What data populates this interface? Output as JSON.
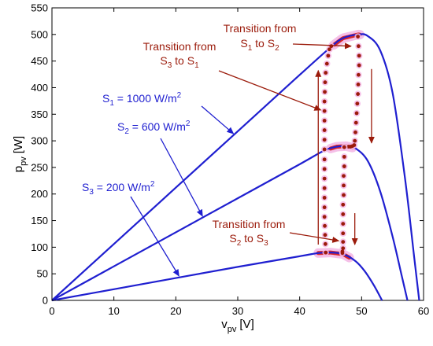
{
  "chart_data": {
    "type": "line",
    "title": "",
    "xlabel": {
      "main": "v",
      "sub": "pv",
      "unit": "[V]"
    },
    "ylabel": {
      "main": "p",
      "sub": "pv",
      "unit": "[W]"
    },
    "xlim": [
      0,
      60
    ],
    "ylim": [
      0,
      550
    ],
    "xticks": [
      "0",
      "10",
      "20",
      "30",
      "40",
      "50",
      "60"
    ],
    "yticks": [
      "0",
      "50",
      "100",
      "150",
      "200",
      "250",
      "300",
      "350",
      "400",
      "450",
      "500",
      "550"
    ],
    "grid": false,
    "colors": {
      "curve": "#1f1fd0",
      "transition": "#9b1b0b",
      "halo": "#f4b9e6",
      "axis": "#000000"
    },
    "series": [
      {
        "name": "S1 = 1000 W/m2",
        "x": [
          0,
          10,
          20,
          30,
          40,
          45,
          47,
          49.5,
          51,
          53,
          55,
          57,
          58.5,
          59.3
        ],
        "y": [
          0,
          106,
          212,
          318,
          424,
          476,
          493,
          500,
          497,
          470,
          390,
          230,
          80,
          0
        ]
      },
      {
        "name": "S2 = 600 W/m2",
        "x": [
          0,
          10,
          20,
          30,
          40,
          44,
          46,
          47.5,
          49,
          51,
          53,
          55,
          56.5,
          57.4
        ],
        "y": [
          0,
          64,
          128,
          192,
          256,
          282,
          289,
          290,
          286,
          262,
          205,
          120,
          45,
          0
        ]
      },
      {
        "name": "S3 = 200 W/m2",
        "x": [
          0,
          10,
          20,
          30,
          40,
          43,
          45,
          47,
          49,
          50.5,
          52,
          53.3
        ],
        "y": [
          0,
          21,
          42,
          63,
          83,
          89,
          90,
          87,
          74,
          55,
          28,
          0
        ]
      }
    ],
    "transition_paths": [
      {
        "name": "S3 to S1",
        "x": [
          44.2,
          44.15,
          44.1,
          44.05,
          44,
          44,
          44,
          44,
          44,
          44,
          44,
          44,
          44,
          44,
          44,
          44,
          44,
          44.05,
          44.1,
          44.2,
          44.4,
          44.6,
          44.8,
          45.1
        ],
        "y": [
          90,
          106,
          123,
          140,
          157,
          175,
          193,
          211,
          229,
          247,
          265,
          284,
          302,
          320,
          338,
          356,
          374,
          392,
          410,
          428,
          445,
          460,
          472,
          478
        ]
      },
      {
        "name": "S1 to S2",
        "x": [
          49.4,
          49.5,
          49.6,
          49.6,
          49.5,
          49.45,
          49.4,
          49.3,
          49.2,
          49.1,
          49,
          48.9,
          48.8,
          48.5,
          48.2,
          47.9
        ],
        "y": [
          496,
          478,
          460,
          442,
          424,
          406,
          388,
          370,
          352,
          334,
          316,
          300,
          292,
          290,
          289,
          289
        ]
      },
      {
        "name": "S2 to S3",
        "x": [
          47.2,
          47.2,
          47.2,
          47.1,
          47.1,
          47.1,
          47,
          47,
          47,
          47,
          47,
          47,
          46.9,
          46.9
        ],
        "y": [
          288,
          270,
          252,
          234,
          216,
          198,
          180,
          162,
          144,
          126,
          110,
          98,
          92,
          89
        ]
      }
    ],
    "highlights": [
      {
        "curve": "S1",
        "x_from": 45.5,
        "x_to": 49.7
      },
      {
        "curve": "S2",
        "x_from": 45,
        "x_to": 48.5
      },
      {
        "curve": "S3",
        "x_from": 43,
        "x_to": 48
      }
    ],
    "annotations": {
      "s1": {
        "main": "S",
        "sub": "1",
        "rest": " = 1000 W/m",
        "sup": "2"
      },
      "s2": {
        "main": "S",
        "sub": "2",
        "rest": " = 600 W/m",
        "sup": "2"
      },
      "s3": {
        "main": "S",
        "sub": "3",
        "rest": " = 200 W/m",
        "sup": "2"
      },
      "t31": {
        "line1": "Transition from",
        "line2": {
          "a": "S",
          "asub": "3",
          "mid": " to S",
          "bsub": "1"
        }
      },
      "t12": {
        "line1": "Transition from",
        "line2": {
          "a": "S",
          "asub": "1",
          "mid": " to S",
          "bsub": "2"
        }
      },
      "t23": {
        "line1": "Transition from",
        "line2": {
          "a": "S",
          "asub": "2",
          "mid": " to S",
          "bsub": "3"
        }
      }
    },
    "direction_arrows": [
      {
        "x_at": 43.0,
        "y_from": 105,
        "y_to": 432
      },
      {
        "x_at": 51.6,
        "y_from": 435,
        "y_to": 296
      },
      {
        "x_at": 48.9,
        "y_from": 164,
        "y_to": 105
      }
    ]
  }
}
